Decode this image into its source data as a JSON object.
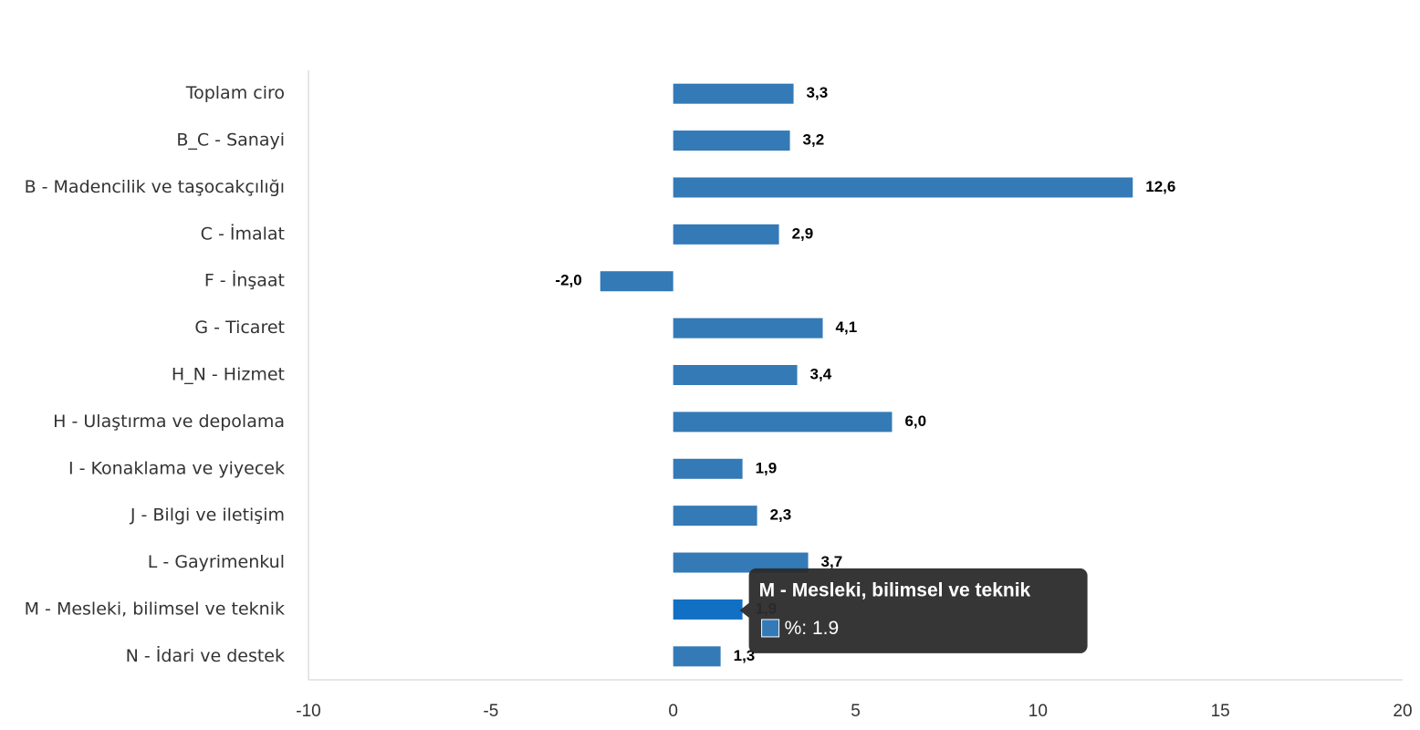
{
  "chart_data": {
    "type": "bar",
    "orientation": "horizontal",
    "categories": [
      "Toplam ciro",
      "B_C - Sanayi",
      "B - Madencilik ve taşocakçılığı",
      "C - İmalat",
      "F - İnşaat",
      "G - Ticaret",
      "H_N - Hizmet",
      "H - Ulaştırma ve depolama",
      "I - Konaklama ve yiyecek",
      "J - Bilgi ve iletişim",
      "L - Gayrimenkul",
      "M - Mesleki, bilimsel ve teknik",
      "N - İdari ve destek"
    ],
    "series": [
      {
        "name": "%",
        "color": "#337ab7",
        "values": [
          3.3,
          3.2,
          12.6,
          2.9,
          -2.0,
          4.1,
          3.4,
          6.0,
          1.9,
          2.3,
          3.7,
          1.9,
          1.3
        ],
        "value_labels": [
          "3,3",
          "3,2",
          "12,6",
          "2,9",
          "-2,0",
          "4,1",
          "3,4",
          "6,0",
          "1,9",
          "2,3",
          "3,7",
          "1,9",
          "1,3"
        ]
      }
    ],
    "xlim": [
      -10,
      20
    ],
    "xticks": [
      -10,
      -5,
      0,
      5,
      10,
      15,
      20
    ],
    "hover_index": 11,
    "hover_color": "#1170c4"
  }
}
